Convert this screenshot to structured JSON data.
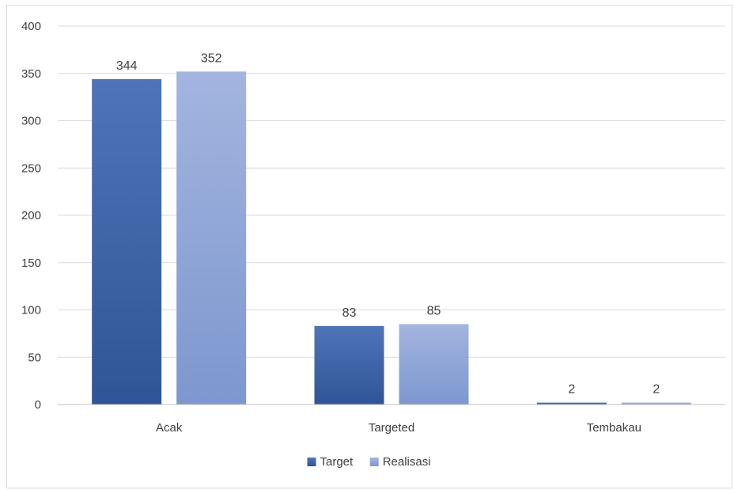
{
  "chart_data": {
    "type": "bar",
    "title": "",
    "xlabel": "",
    "ylabel": "",
    "categories": [
      "Acak",
      "Targeted",
      "Tembakau"
    ],
    "series": [
      {
        "name": "Target",
        "values": [
          344,
          83,
          2
        ],
        "color": "#2f5597",
        "color_top": "#4f74b8"
      },
      {
        "name": "Realisasi",
        "values": [
          352,
          85,
          2
        ],
        "color": "#7d97cf",
        "color_top": "#a3b5df"
      }
    ],
    "ylim": [
      0,
      400
    ],
    "yticks": [
      0,
      50,
      100,
      150,
      200,
      250,
      300,
      350,
      400
    ],
    "grid": true,
    "legend_position": "bottom",
    "data_labels": true
  }
}
